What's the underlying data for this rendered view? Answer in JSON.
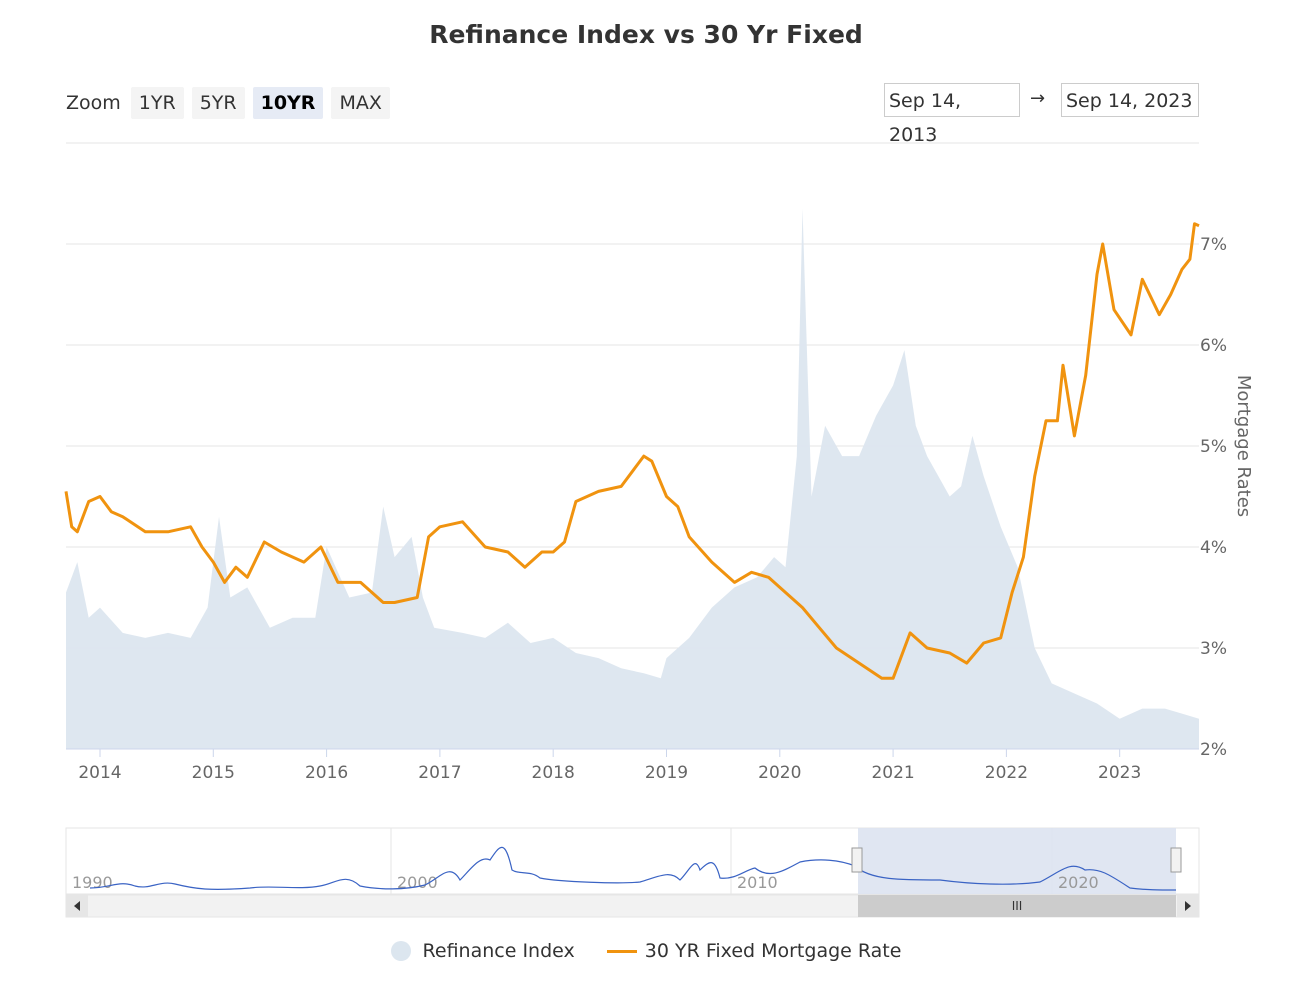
{
  "chart_title": "Refinance Index vs 30 Yr Fixed",
  "zoom": {
    "label": "Zoom",
    "buttons": [
      "1YR",
      "5YR",
      "10YR",
      "MAX"
    ],
    "active": "10YR"
  },
  "date_range": {
    "from": "Sep 14, 2013",
    "arrow": "→",
    "to": "Sep 14, 2023"
  },
  "legend": {
    "area_label": "Refinance Index",
    "line_label": "30 YR Fixed Mortgage Rate"
  },
  "colors": {
    "area": "#dce6ef",
    "line": "#f0930f",
    "navigator_line": "#3a63c4",
    "navigator_mask": "#dde3f1"
  },
  "navigator": {
    "labels": [
      "1990",
      "2000",
      "2010",
      "2020"
    ],
    "scroll_grip": "III"
  },
  "chart_data": {
    "type": "line",
    "x_range": [
      2013.7,
      2023.7
    ],
    "x_ticks": [
      "2014",
      "2015",
      "2016",
      "2017",
      "2018",
      "2019",
      "2020",
      "2021",
      "2022",
      "2023"
    ],
    "y_axis_right": {
      "label": "Mortgage Rates",
      "ticks": [
        "2%",
        "3%",
        "4%",
        "5%",
        "6%",
        "7%"
      ],
      "range": [
        2,
        8
      ]
    },
    "series": [
      {
        "name": "30 YR Fixed Mortgage Rate",
        "type": "line",
        "x": [
          2013.7,
          2013.75,
          2013.8,
          2013.9,
          2014.0,
          2014.1,
          2014.2,
          2014.4,
          2014.6,
          2014.8,
          2014.9,
          2015.0,
          2015.1,
          2015.2,
          2015.3,
          2015.45,
          2015.6,
          2015.8,
          2015.95,
          2016.1,
          2016.3,
          2016.5,
          2016.6,
          2016.8,
          2016.9,
          2017.0,
          2017.2,
          2017.4,
          2017.6,
          2017.75,
          2017.9,
          2018.0,
          2018.1,
          2018.2,
          2018.4,
          2018.6,
          2018.8,
          2018.87,
          2019.0,
          2019.1,
          2019.2,
          2019.4,
          2019.6,
          2019.75,
          2019.9,
          2020.0,
          2020.2,
          2020.35,
          2020.5,
          2020.7,
          2020.9,
          2021.0,
          2021.15,
          2021.3,
          2021.5,
          2021.65,
          2021.8,
          2021.95,
          2022.05,
          2022.15,
          2022.25,
          2022.35,
          2022.45,
          2022.5,
          2022.6,
          2022.7,
          2022.8,
          2022.85,
          2022.95,
          2023.1,
          2023.2,
          2023.35,
          2023.45,
          2023.55,
          2023.62,
          2023.66,
          2023.7
        ],
        "values": [
          4.55,
          4.2,
          4.15,
          4.45,
          4.5,
          4.35,
          4.3,
          4.15,
          4.15,
          4.2,
          4.0,
          3.85,
          3.65,
          3.8,
          3.7,
          4.05,
          3.95,
          3.85,
          4.0,
          3.65,
          3.65,
          3.45,
          3.45,
          3.5,
          4.1,
          4.2,
          4.25,
          4.0,
          3.95,
          3.8,
          3.95,
          3.95,
          4.05,
          4.45,
          4.55,
          4.6,
          4.9,
          4.85,
          4.5,
          4.4,
          4.1,
          3.85,
          3.65,
          3.75,
          3.7,
          3.6,
          3.4,
          3.2,
          3.0,
          2.85,
          2.7,
          2.7,
          3.15,
          3.0,
          2.95,
          2.85,
          3.05,
          3.1,
          3.55,
          3.9,
          4.7,
          5.25,
          5.25,
          5.8,
          5.1,
          5.7,
          6.7,
          7.0,
          6.35,
          6.1,
          6.65,
          6.3,
          6.5,
          6.75,
          6.85,
          7.2,
          7.18
        ]
      },
      {
        "name": "Refinance Index",
        "type": "area",
        "x": [
          2013.7,
          2013.8,
          2013.9,
          2014.0,
          2014.2,
          2014.4,
          2014.6,
          2014.8,
          2014.95,
          2015.05,
          2015.15,
          2015.3,
          2015.5,
          2015.7,
          2015.9,
          2016.0,
          2016.2,
          2016.4,
          2016.5,
          2016.6,
          2016.75,
          2016.85,
          2016.95,
          2017.2,
          2017.4,
          2017.6,
          2017.8,
          2018.0,
          2018.2,
          2018.4,
          2018.6,
          2018.8,
          2018.95,
          2019.0,
          2019.2,
          2019.4,
          2019.6,
          2019.8,
          2019.95,
          2020.05,
          2020.15,
          2020.2,
          2020.28,
          2020.4,
          2020.55,
          2020.7,
          2020.85,
          2021.0,
          2021.1,
          2021.2,
          2021.3,
          2021.4,
          2021.5,
          2021.6,
          2021.7,
          2021.8,
          2021.95,
          2022.1,
          2022.25,
          2022.4,
          2022.6,
          2022.8,
          2023.0,
          2023.2,
          2023.4,
          2023.55,
          2023.7
        ],
        "values": [
          3.55,
          3.85,
          3.3,
          3.4,
          3.15,
          3.1,
          3.15,
          3.1,
          3.4,
          4.3,
          3.5,
          3.6,
          3.2,
          3.3,
          3.3,
          4.0,
          3.5,
          3.55,
          4.4,
          3.9,
          4.1,
          3.5,
          3.2,
          3.15,
          3.1,
          3.25,
          3.05,
          3.1,
          2.95,
          2.9,
          2.8,
          2.75,
          2.7,
          2.9,
          3.1,
          3.4,
          3.6,
          3.7,
          3.9,
          3.8,
          4.9,
          7.35,
          4.5,
          5.2,
          4.9,
          4.9,
          5.3,
          5.6,
          5.95,
          5.2,
          4.9,
          4.7,
          4.5,
          4.6,
          5.1,
          4.7,
          4.2,
          3.8,
          3.0,
          2.65,
          2.55,
          2.45,
          2.3,
          2.4,
          2.4,
          2.35,
          2.3
        ]
      }
    ],
    "grid": true,
    "legend_position": "bottom-center"
  }
}
